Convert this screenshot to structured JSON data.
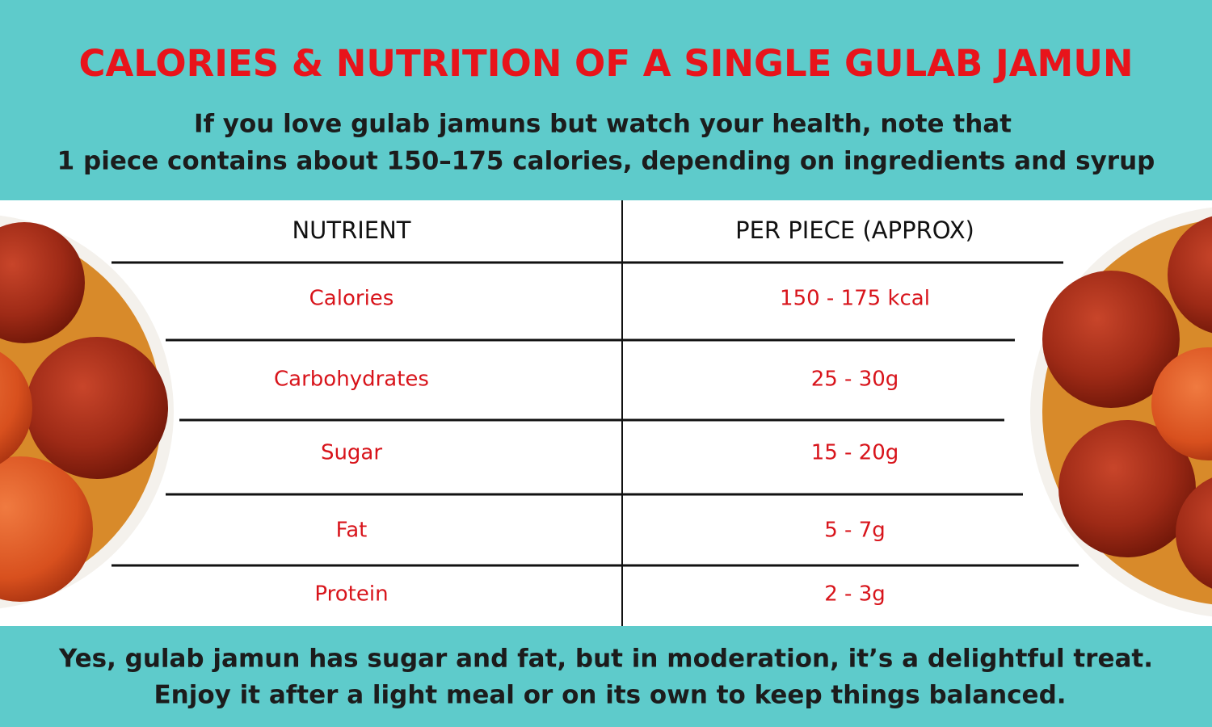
{
  "header": {
    "title": "CALORIES & NUTRITION OF A SINGLE GULAB JAMUN",
    "subtitle": [
      "If you love gulab jamuns but watch your health, note that",
      "1 piece contains about 150–175 calories, depending on ingredients and syrup"
    ]
  },
  "table": {
    "headers": [
      "NUTRIENT",
      "PER PIECE (APPROX)"
    ],
    "rows": [
      [
        "Calories",
        "150 - 175 kcal"
      ],
      [
        "Carbohydrates",
        "25 - 30g"
      ],
      [
        "Sugar",
        "15 - 20g"
      ],
      [
        "Fat",
        "5 - 7g"
      ],
      [
        "Protein",
        "2 - 3g"
      ]
    ]
  },
  "footer": [
    "Yes, gulab jamun has sugar and fat, but in moderation, it’s a delightful treat.",
    "Enjoy it after a light meal or on its own to keep things balanced."
  ]
}
